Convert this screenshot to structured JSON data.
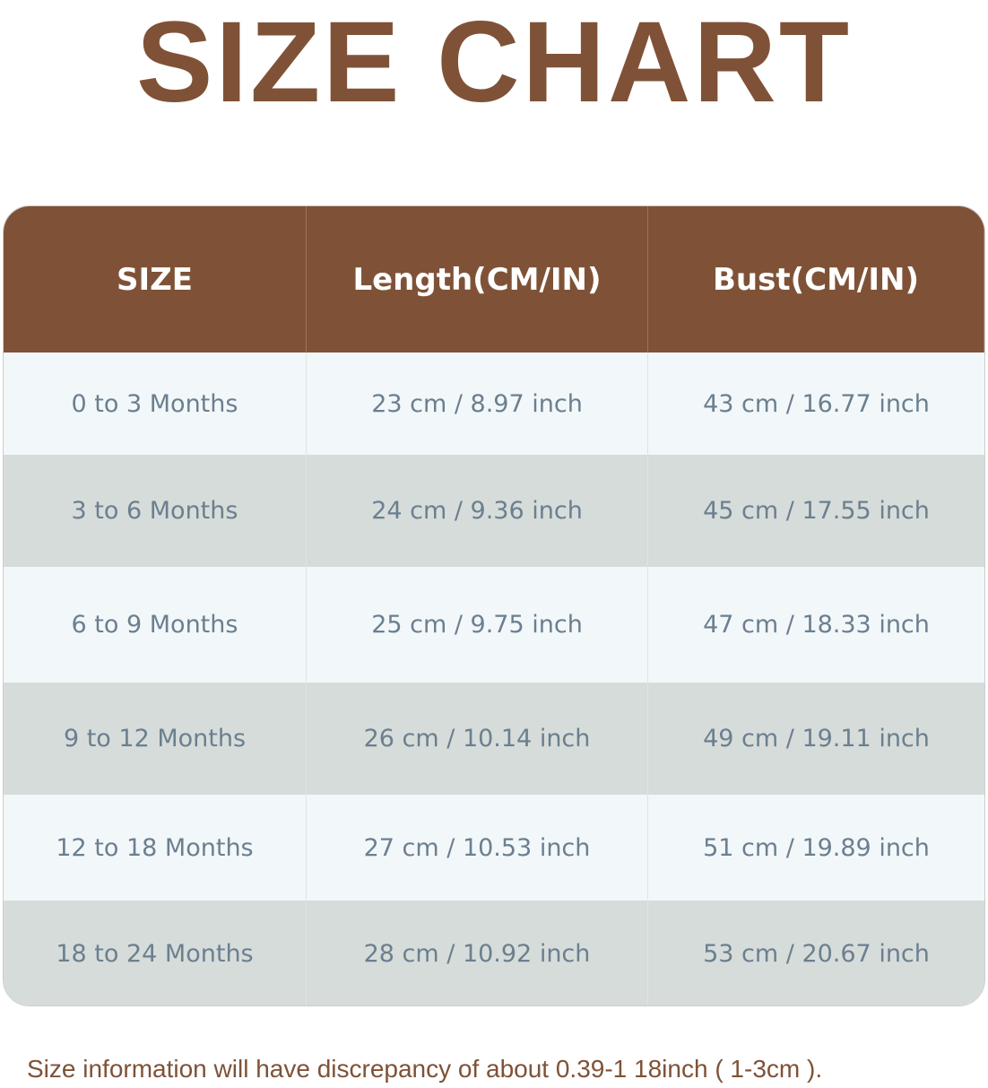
{
  "title": "SIZE CHART",
  "table": {
    "headers": [
      "SIZE",
      "Length(CM/IN)",
      "Bust(CM/IN)"
    ],
    "rows": [
      [
        "0 to 3 Months",
        "23 cm / 8.97 inch",
        "43 cm / 16.77 inch"
      ],
      [
        "3 to 6 Months",
        "24 cm / 9.36 inch",
        "45 cm / 17.55 inch"
      ],
      [
        "6 to 9 Months",
        "25 cm / 9.75 inch",
        "47 cm / 18.33 inch"
      ],
      [
        "9 to 12 Months",
        "26 cm / 10.14 inch",
        "49 cm / 19.11 inch"
      ],
      [
        "12 to 18 Months",
        "27 cm / 10.53 inch",
        "51 cm / 19.89 inch"
      ],
      [
        "18 to 24 Months",
        "28 cm / 10.92 inch",
        "53 cm / 20.67 inch"
      ]
    ]
  },
  "footer": "Size information will have discrepancy of about 0.39-1 18inch ( 1-3cm ).",
  "colors": {
    "brand": "#7f5237",
    "row_light": "#f2f7fa",
    "row_gray": "#d6dcda",
    "text": "#6b7f8f"
  }
}
